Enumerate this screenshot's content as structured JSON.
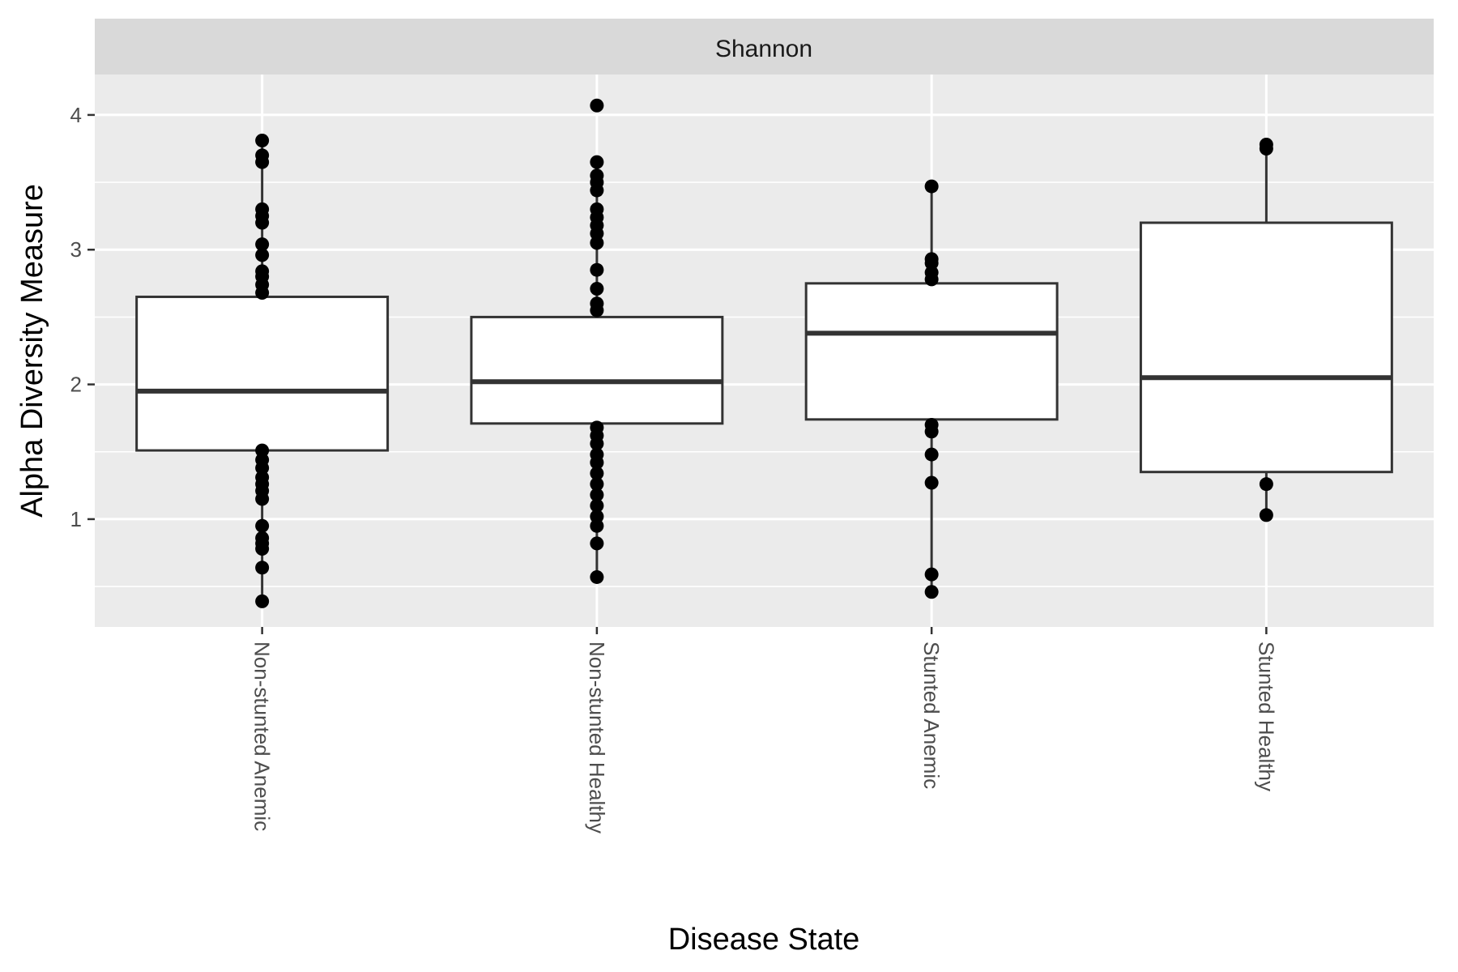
{
  "chart_data": {
    "type": "box",
    "facet": "Shannon",
    "xlabel": "Disease State",
    "ylabel": "Alpha Diversity Measure",
    "categories": [
      "Non-stunted Anemic",
      "Non-stunted Healthy",
      "Stunted Anemic",
      "Stunted Healthy"
    ],
    "yticks": [
      1,
      2,
      3,
      4
    ],
    "ylim": [
      0.2,
      4.3
    ],
    "grid": true,
    "boxes": [
      {
        "category": "Non-stunted Anemic",
        "q1": 1.51,
        "median": 1.95,
        "q3": 2.65,
        "whisker_low": 0.39,
        "whisker_high": 3.81
      },
      {
        "category": "Non-stunted Healthy",
        "q1": 1.71,
        "median": 2.02,
        "q3": 2.5,
        "whisker_low": 0.57,
        "whisker_high": 3.65
      },
      {
        "category": "Stunted Anemic",
        "q1": 1.74,
        "median": 2.38,
        "q3": 2.75,
        "whisker_low": 0.46,
        "whisker_high": 3.47
      },
      {
        "category": "Stunted Healthy",
        "q1": 1.35,
        "median": 2.05,
        "q3": 3.2,
        "whisker_low": 1.03,
        "whisker_high": 3.78
      }
    ],
    "points": [
      {
        "category": "Non-stunted Anemic",
        "values": [
          0.39,
          0.64,
          0.78,
          0.82,
          0.86,
          0.95,
          1.15,
          1.21,
          1.26,
          1.31,
          1.38,
          1.44,
          1.51,
          2.68,
          2.74,
          2.8,
          2.84,
          2.96,
          3.04,
          3.2,
          3.25,
          3.3,
          3.65,
          3.7,
          3.81
        ]
      },
      {
        "category": "Non-stunted Healthy",
        "values": [
          0.57,
          0.82,
          0.95,
          1.02,
          1.1,
          1.18,
          1.26,
          1.34,
          1.42,
          1.48,
          1.56,
          1.62,
          1.68,
          2.55,
          2.6,
          2.71,
          2.85,
          3.05,
          3.12,
          3.18,
          3.24,
          3.3,
          3.44,
          3.5,
          3.55,
          3.65,
          4.07
        ]
      },
      {
        "category": "Stunted Anemic",
        "values": [
          0.46,
          0.59,
          1.27,
          1.48,
          1.65,
          1.7,
          2.78,
          2.83,
          2.9,
          2.93,
          3.47
        ]
      },
      {
        "category": "Stunted Healthy",
        "values": [
          1.03,
          1.26,
          3.75,
          3.78
        ]
      }
    ],
    "colors": {
      "panel": "#ebebeb",
      "strip": "#d9d9d9",
      "grid": "#ffffff",
      "box_fill": "#ffffff",
      "box_line": "#333333",
      "point": "#000000",
      "tick": "#333333"
    }
  }
}
